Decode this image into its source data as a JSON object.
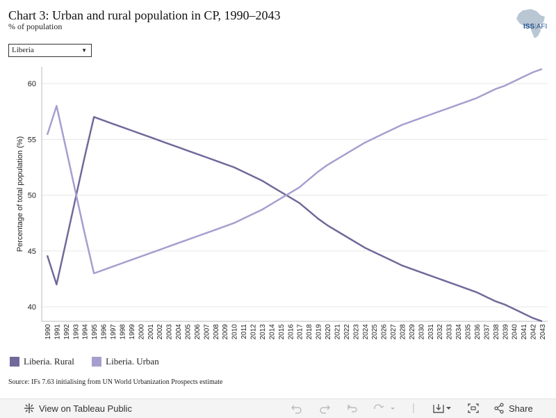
{
  "header": {
    "title": "Chart 3: Urban and rural population in CP, 1990–2043",
    "subtitle": "% of population"
  },
  "logo": {
    "text_left": "ISS",
    "text_sep": "|",
    "text_right": "AFI"
  },
  "filter": {
    "selected": "Liberia"
  },
  "colors": {
    "rural": "#6f6a9a",
    "urban": "#a59fcf",
    "grid": "#e6e6e6",
    "axis": "#bbbbbb"
  },
  "chart_data": {
    "type": "line",
    "ylabel": "Percentage of total population (%)",
    "ylim": [
      38.7,
      61.5
    ],
    "yticks": [
      40,
      45,
      50,
      55,
      60
    ],
    "x": [
      1990,
      1991,
      1992,
      1993,
      1994,
      1995,
      1996,
      1997,
      1998,
      1999,
      2000,
      2001,
      2002,
      2003,
      2004,
      2005,
      2006,
      2007,
      2008,
      2009,
      2010,
      2011,
      2012,
      2013,
      2014,
      2015,
      2016,
      2017,
      2018,
      2019,
      2020,
      2021,
      2022,
      2023,
      2024,
      2025,
      2026,
      2027,
      2028,
      2029,
      2030,
      2031,
      2032,
      2033,
      2034,
      2035,
      2036,
      2037,
      2038,
      2039,
      2040,
      2041,
      2042,
      2043
    ],
    "series": [
      {
        "name": "Liberia. Rural",
        "values": [
          44.6,
          42.0,
          45.8,
          49.6,
          53.4,
          57.0,
          56.7,
          56.4,
          56.1,
          55.8,
          55.5,
          55.2,
          54.9,
          54.6,
          54.3,
          54.0,
          53.7,
          53.4,
          53.1,
          52.8,
          52.5,
          52.1,
          51.7,
          51.3,
          50.8,
          50.3,
          49.8,
          49.3,
          48.6,
          47.9,
          47.3,
          46.8,
          46.3,
          45.8,
          45.3,
          44.9,
          44.5,
          44.1,
          43.7,
          43.4,
          43.1,
          42.8,
          42.5,
          42.2,
          41.9,
          41.6,
          41.3,
          40.9,
          40.5,
          40.2,
          39.8,
          39.4,
          39.0,
          38.7
        ]
      },
      {
        "name": "Liberia. Urban",
        "values": [
          55.4,
          58.0,
          54.2,
          50.4,
          46.6,
          43.0,
          43.3,
          43.6,
          43.9,
          44.2,
          44.5,
          44.8,
          45.1,
          45.4,
          45.7,
          46.0,
          46.3,
          46.6,
          46.9,
          47.2,
          47.5,
          47.9,
          48.3,
          48.7,
          49.2,
          49.7,
          50.2,
          50.7,
          51.4,
          52.1,
          52.7,
          53.2,
          53.7,
          54.2,
          54.7,
          55.1,
          55.5,
          55.9,
          56.3,
          56.6,
          56.9,
          57.2,
          57.5,
          57.8,
          58.1,
          58.4,
          58.7,
          59.1,
          59.5,
          59.8,
          60.2,
          60.6,
          61.0,
          61.3
        ]
      }
    ],
    "legend_position": "bottom-left",
    "grid": true
  },
  "legend": {
    "rural": "Liberia. Rural",
    "urban": "Liberia. Urban"
  },
  "source": "Source: IFs 7.63 initialising from UN World Urbanization Prospects estimate",
  "footer": {
    "view_label": "View on Tableau Public",
    "share_label": "Share"
  }
}
